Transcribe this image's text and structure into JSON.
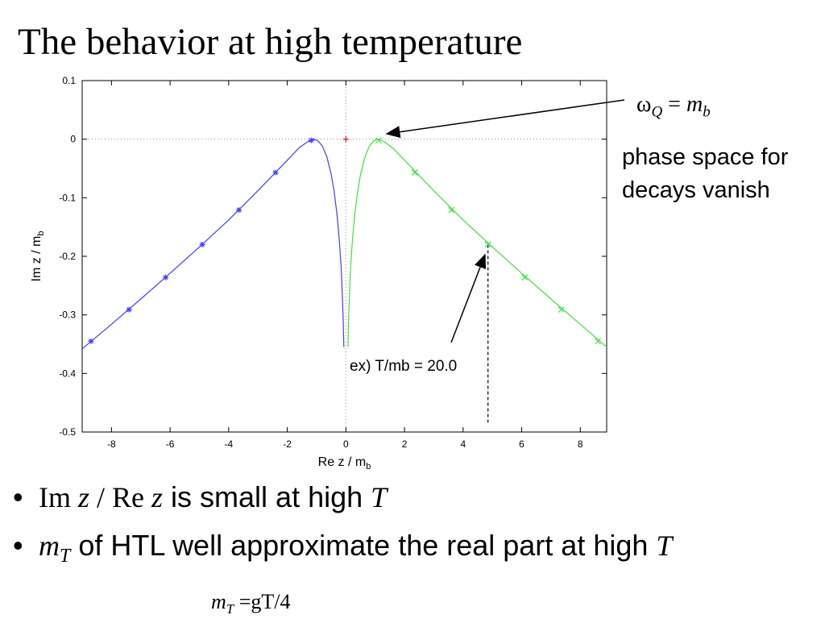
{
  "slide": {
    "title": "The behavior at high temperature"
  },
  "annotations": {
    "omega_main": "ω",
    "omega_sub": "Q",
    "omega_eq": " = ",
    "omega_m": "m",
    "omega_b": "b",
    "side_note": "phase space for decays vanish",
    "ex_label": "ex) T/mb = 20.0"
  },
  "bullets": [
    {
      "im": "Im ",
      "z1": "z",
      "slash": " / Re ",
      "z2": "z",
      "text": " is small at high ",
      "T": "T"
    },
    {
      "m": "m",
      "m_sub": "T",
      "text": " of HTL well approximate the real part at high ",
      "T": "T"
    }
  ],
  "formula": {
    "m": "m",
    "sub": "T",
    "rest": " =gT/4"
  },
  "chart_data": {
    "type": "line",
    "xlabel": "Re z / m",
    "xlabel_sub": "b",
    "ylabel": "Im z / m",
    "ylabel_sub": "b",
    "xlim": [
      -9,
      8.9
    ],
    "ylim": [
      -0.5,
      0.1
    ],
    "x_ticks": [
      -8,
      -6,
      -4,
      -2,
      0,
      2,
      4,
      6,
      8
    ],
    "y_ticks": [
      0.1,
      0,
      -0.1,
      -0.2,
      -0.3,
      -0.4,
      -0.5
    ],
    "grid": false,
    "reference_lines": "dotted lines at x = 0 and y = 0",
    "series": [
      {
        "color": "#4040ff",
        "marker": "asterisk",
        "markers": [
          {
            "x": -8.7,
            "y": -0.345
          },
          {
            "x": -7.4,
            "y": -0.291
          },
          {
            "x": -6.15,
            "y": -0.236
          },
          {
            "x": -4.9,
            "y": -0.18
          },
          {
            "x": -3.65,
            "y": -0.121
          },
          {
            "x": -2.4,
            "y": -0.057
          },
          {
            "x": -1.18,
            "y": -0.002
          }
        ],
        "curve": [
          {
            "x": -9.0,
            "y": -0.358
          },
          {
            "x": -8.0,
            "y": -0.316
          },
          {
            "x": -7.0,
            "y": -0.273
          },
          {
            "x": -6.0,
            "y": -0.229
          },
          {
            "x": -5.0,
            "y": -0.184
          },
          {
            "x": -4.0,
            "y": -0.138
          },
          {
            "x": -3.0,
            "y": -0.088
          },
          {
            "x": -2.5,
            "y": -0.062
          },
          {
            "x": -2.0,
            "y": -0.036
          },
          {
            "x": -1.6,
            "y": -0.015
          },
          {
            "x": -1.3,
            "y": -0.004
          },
          {
            "x": -1.1,
            "y": 0.0
          },
          {
            "x": -0.95,
            "y": -0.003
          },
          {
            "x": -0.8,
            "y": -0.012
          },
          {
            "x": -0.65,
            "y": -0.03
          },
          {
            "x": -0.5,
            "y": -0.06
          },
          {
            "x": -0.4,
            "y": -0.09
          },
          {
            "x": -0.3,
            "y": -0.13
          },
          {
            "x": -0.22,
            "y": -0.175
          },
          {
            "x": -0.16,
            "y": -0.22
          },
          {
            "x": -0.12,
            "y": -0.27
          },
          {
            "x": -0.09,
            "y": -0.31
          },
          {
            "x": -0.07,
            "y": -0.355
          }
        ]
      },
      {
        "color": "#40e040",
        "marker": "cross",
        "markers": [
          {
            "x": 1.12,
            "y": -0.002
          },
          {
            "x": 2.35,
            "y": -0.057
          },
          {
            "x": 3.6,
            "y": -0.121
          },
          {
            "x": 4.85,
            "y": -0.18
          },
          {
            "x": 6.1,
            "y": -0.236
          },
          {
            "x": 7.35,
            "y": -0.291
          },
          {
            "x": 8.6,
            "y": -0.345
          }
        ],
        "curve": [
          {
            "x": 0.07,
            "y": -0.355
          },
          {
            "x": 0.09,
            "y": -0.31
          },
          {
            "x": 0.12,
            "y": -0.27
          },
          {
            "x": 0.16,
            "y": -0.22
          },
          {
            "x": 0.22,
            "y": -0.175
          },
          {
            "x": 0.3,
            "y": -0.13
          },
          {
            "x": 0.4,
            "y": -0.09
          },
          {
            "x": 0.5,
            "y": -0.06
          },
          {
            "x": 0.65,
            "y": -0.03
          },
          {
            "x": 0.8,
            "y": -0.012
          },
          {
            "x": 0.95,
            "y": -0.003
          },
          {
            "x": 1.1,
            "y": 0.0
          },
          {
            "x": 1.3,
            "y": -0.004
          },
          {
            "x": 1.6,
            "y": -0.015
          },
          {
            "x": 2.0,
            "y": -0.036
          },
          {
            "x": 2.5,
            "y": -0.062
          },
          {
            "x": 3.0,
            "y": -0.088
          },
          {
            "x": 4.0,
            "y": -0.138
          },
          {
            "x": 5.0,
            "y": -0.184
          },
          {
            "x": 6.0,
            "y": -0.229
          },
          {
            "x": 7.0,
            "y": -0.273
          },
          {
            "x": 8.0,
            "y": -0.316
          },
          {
            "x": 8.9,
            "y": -0.355
          }
        ]
      },
      {
        "color": "#ff0000",
        "marker": "plus",
        "markers": [
          {
            "x": 0,
            "y": 0
          }
        ]
      }
    ],
    "dashed_guide": {
      "x": 4.85,
      "y_from": -0.18,
      "y_to": -0.5
    }
  }
}
